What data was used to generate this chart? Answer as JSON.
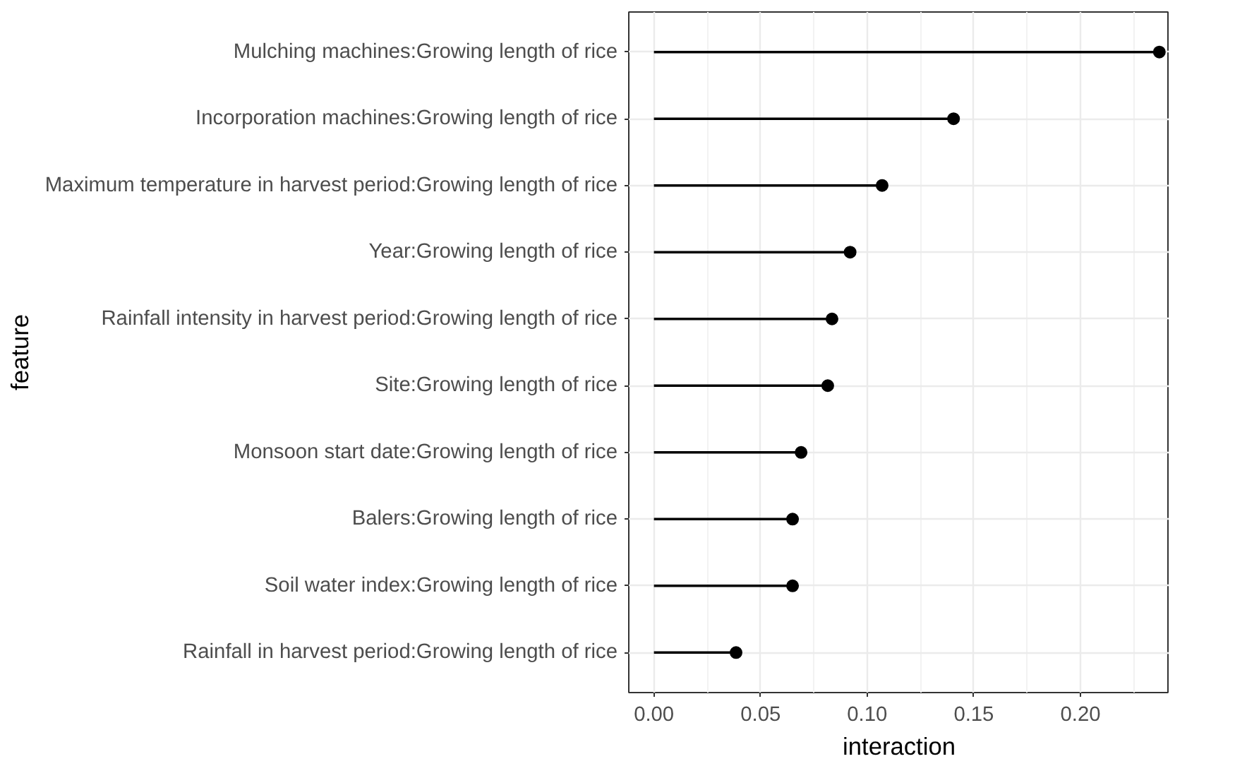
{
  "chart_data": {
    "type": "lollipop",
    "orientation": "horizontal",
    "xlabel": "interaction",
    "ylabel": "feature",
    "categories": [
      "Mulching machines:Growing length of rice",
      "Incorporation machines:Growing length of rice",
      "Maximum temperature in harvest period:Growing length of rice",
      "Year:Growing length of rice",
      "Rainfall intensity in harvest period:Growing length of rice",
      "Site:Growing length of rice",
      "Monsoon start date:Growing length of rice",
      "Balers:Growing length of rice",
      "Soil water index:Growing length of rice",
      "Rainfall in harvest period:Growing length of rice"
    ],
    "values": [
      0.237,
      0.1405,
      0.107,
      0.092,
      0.0835,
      0.0815,
      0.069,
      0.065,
      0.065,
      0.0385
    ],
    "color": "#000000",
    "marker": "circle",
    "xlim": [
      -0.0118,
      0.2417
    ],
    "xticks": [
      {
        "value": 0,
        "label": "0.00"
      },
      {
        "value": 0.05,
        "label": "0.05"
      },
      {
        "value": 0.1,
        "label": "0.10"
      },
      {
        "value": 0.15,
        "label": "0.15"
      },
      {
        "value": 0.2,
        "label": "0.20"
      }
    ],
    "grid": true
  }
}
